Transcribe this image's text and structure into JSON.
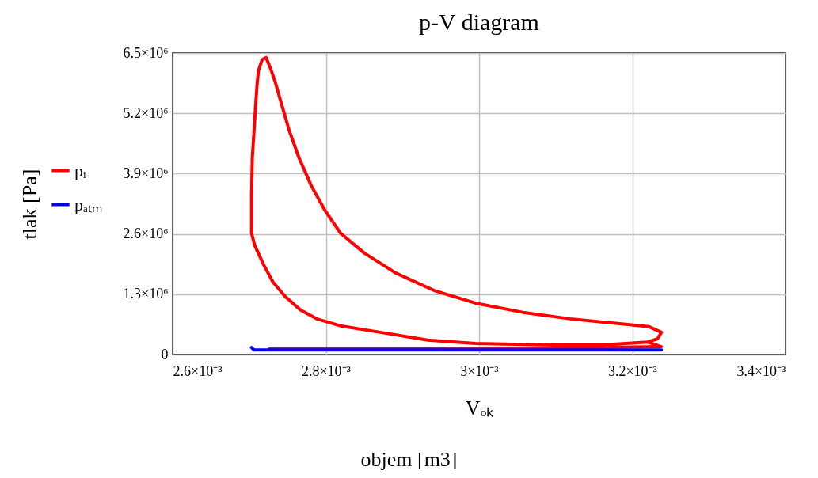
{
  "chart_data": {
    "type": "line",
    "title": "p-V diagram",
    "xlabel": "Vₒₖ",
    "ylabel": "tlak [Pa]",
    "annotations": [
      "objem [m3]"
    ],
    "xlim": [
      0.0026,
      0.0034
    ],
    "xticks": [
      {
        "value": 0.0026,
        "label": "2.6×10⁻³"
      },
      {
        "value": 0.0028,
        "label": "2.8×10⁻³"
      },
      {
        "value": 0.003,
        "label": "3×10⁻³"
      },
      {
        "value": 0.0032,
        "label": "3.2×10⁻³"
      },
      {
        "value": 0.0034,
        "label": "3.4×10⁻³"
      }
    ],
    "ylim": [
      0,
      6500000
    ],
    "yticks": [
      0,
      {
        "value": 1300000,
        "label": "1.3×10⁶"
      },
      {
        "value": 2600000,
        "label": "2.6×10⁶"
      },
      {
        "value": 3900000,
        "label": "3.9×10⁶"
      },
      {
        "value": 5200000,
        "label": "5.2×10⁶"
      },
      {
        "value": 6500000,
        "label": "6.5×10⁶"
      }
    ],
    "grid": true,
    "legend": "left",
    "marker": "none",
    "line_style": "solid",
    "series": [
      {
        "name": "pᵢ",
        "color": "#ff0000",
        "x": [
          0.002726,
          0.002917,
          0.003098,
          0.003238,
          0.00322,
          0.00316,
          0.003098,
          0.002995,
          0.002933,
          0.002871,
          0.002819,
          0.002788,
          0.002767,
          0.002747,
          0.002731,
          0.002719,
          0.002707,
          0.002703,
          0.002703,
          0.002704,
          0.002706,
          0.00271,
          0.002712,
          0.002717,
          0.002722,
          0.002728,
          0.002734,
          0.002743,
          0.002752,
          0.002765,
          0.002781,
          0.002798,
          0.002819,
          0.00285,
          0.002891,
          0.002943,
          0.002995,
          0.003057,
          0.003119,
          0.003181,
          0.003222,
          0.003238,
          0.003233,
          0.00322
        ],
        "values": [
          120000,
          120000,
          137000,
          170000,
          270000,
          205000,
          205000,
          240000,
          310000,
          480000,
          620000,
          770000,
          960000,
          1250000,
          1560000,
          1930000,
          2360000,
          2620000,
          3390000,
          4240000,
          4760000,
          5780000,
          6120000,
          6360000,
          6400000,
          6160000,
          5870000,
          5350000,
          4840000,
          4240000,
          3640000,
          3130000,
          2620000,
          2190000,
          1760000,
          1370000,
          1110000,
          910000,
          770000,
          670000,
          600000,
          480000,
          340000,
          270000
        ]
      },
      {
        "name": "pₐₜₘ",
        "color": "#0000ff",
        "x": [
          0.002703,
          0.002706,
          0.003238
        ],
        "values": [
          150000,
          100000,
          100000
        ]
      }
    ]
  }
}
